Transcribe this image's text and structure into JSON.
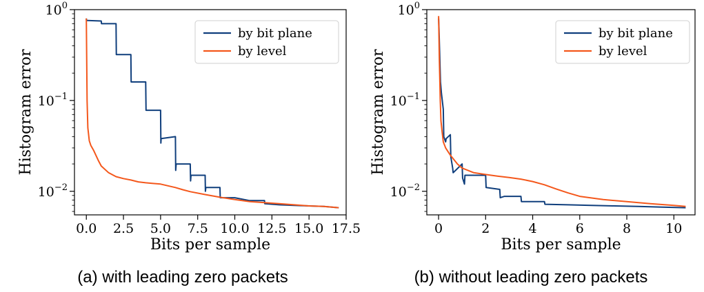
{
  "chart_data": [
    {
      "type": "line",
      "xlabel": "Bits per sample",
      "ylabel": "Histogram error",
      "yscale": "log",
      "xlim": [
        -0.8,
        17.5
      ],
      "ylim": [
        0.0055,
        1.0
      ],
      "xticks": [
        0,
        2.5,
        5,
        7.5,
        10,
        12.5,
        15,
        17.5
      ],
      "xtick_labels": [
        "0.0",
        "2.5",
        "5.0",
        "7.5",
        "10.0",
        "12.5",
        "15.0",
        "17.5"
      ],
      "yticks": [
        {
          "value": 1,
          "base": "10",
          "exp": "0"
        },
        {
          "value": 0.1,
          "base": "10",
          "exp": "−1"
        },
        {
          "value": 0.01,
          "base": "10",
          "exp": "−2"
        }
      ],
      "legend": "top-right",
      "caption": "(a) with leading zero packets",
      "series": [
        {
          "name": "by bit plane",
          "color": "#0f3e7c",
          "x": [
            0.0,
            0.01,
            1.0,
            1.02,
            2.0,
            2.02,
            3.0,
            3.02,
            4.0,
            4.02,
            5.0,
            5.02,
            5.04,
            6.0,
            6.02,
            6.05,
            7.0,
            7.02,
            7.05,
            8.0,
            8.02,
            8.05,
            9.0,
            9.02,
            10.0,
            11.0,
            12.0,
            12.02,
            13.0,
            14.0,
            15.0,
            16.0,
            17.0
          ],
          "y": [
            0.8,
            0.76,
            0.75,
            0.7,
            0.7,
            0.32,
            0.32,
            0.16,
            0.16,
            0.078,
            0.078,
            0.034,
            0.038,
            0.04,
            0.017,
            0.02,
            0.02,
            0.013,
            0.015,
            0.015,
            0.01,
            0.011,
            0.011,
            0.0085,
            0.0085,
            0.0079,
            0.0079,
            0.0073,
            0.0071,
            0.007,
            0.0069,
            0.0068,
            0.0066
          ]
        },
        {
          "name": "by level",
          "color": "#f4571b",
          "x": [
            0.0,
            0.05,
            0.1,
            0.2,
            0.3,
            0.5,
            0.8,
            1.0,
            1.5,
            2.0,
            2.5,
            3.0,
            3.5,
            4.0,
            4.5,
            5.0,
            5.5,
            6.0,
            6.5,
            7.0,
            8.0,
            9.0,
            10.0,
            11.0,
            12.0,
            13.0,
            14.0,
            15.0,
            16.0,
            17.0
          ],
          "y": [
            0.8,
            0.1,
            0.05,
            0.036,
            0.032,
            0.028,
            0.022,
            0.019,
            0.016,
            0.0145,
            0.0138,
            0.0133,
            0.0127,
            0.0124,
            0.0122,
            0.012,
            0.0115,
            0.011,
            0.0104,
            0.0099,
            0.0092,
            0.0086,
            0.0081,
            0.0077,
            0.0075,
            0.0073,
            0.0071,
            0.0069,
            0.0068,
            0.0066
          ]
        }
      ]
    },
    {
      "type": "line",
      "xlabel": "Bits per sample",
      "ylabel": "Histogram error",
      "yscale": "log",
      "xlim": [
        -0.5,
        10.9
      ],
      "ylim": [
        0.0055,
        1.0
      ],
      "xticks": [
        0,
        2,
        4,
        6,
        8,
        10
      ],
      "xtick_labels": [
        "0",
        "2",
        "4",
        "6",
        "8",
        "10"
      ],
      "yticks": [
        {
          "value": 1,
          "base": "10",
          "exp": "0"
        },
        {
          "value": 0.1,
          "base": "10",
          "exp": "−1"
        },
        {
          "value": 0.01,
          "base": "10",
          "exp": "−2"
        }
      ],
      "legend": "top-right",
      "caption": "(b) without leading zero packets",
      "series": [
        {
          "name": "by bit plane",
          "color": "#0f3e7c",
          "x": [
            0.0,
            0.02,
            0.05,
            0.08,
            0.12,
            0.2,
            0.22,
            0.3,
            0.32,
            0.5,
            0.52,
            0.6,
            0.62,
            1.0,
            1.02,
            1.1,
            1.12,
            2.0,
            2.02,
            2.6,
            2.62,
            2.8,
            3.5,
            3.52,
            4.5,
            4.52,
            5.5,
            6.5,
            7.5,
            8.5,
            9.5,
            10.5
          ],
          "y": [
            0.8,
            0.6,
            0.3,
            0.16,
            0.12,
            0.08,
            0.04,
            0.035,
            0.038,
            0.042,
            0.024,
            0.018,
            0.016,
            0.02,
            0.014,
            0.012,
            0.015,
            0.015,
            0.011,
            0.0105,
            0.0085,
            0.0088,
            0.0088,
            0.0077,
            0.0077,
            0.0072,
            0.0071,
            0.007,
            0.0069,
            0.0068,
            0.0067,
            0.0066
          ]
        },
        {
          "name": "by level",
          "color": "#f4571b",
          "x": [
            0.0,
            0.03,
            0.07,
            0.1,
            0.15,
            0.2,
            0.3,
            0.5,
            0.8,
            1.0,
            1.5,
            2.0,
            2.5,
            3.0,
            3.5,
            4.0,
            4.5,
            5.0,
            5.5,
            6.0,
            7.0,
            8.0,
            9.0,
            10.0,
            10.5
          ],
          "y": [
            0.85,
            0.3,
            0.1,
            0.06,
            0.045,
            0.035,
            0.03,
            0.025,
            0.02,
            0.018,
            0.016,
            0.0153,
            0.0147,
            0.0142,
            0.0136,
            0.0128,
            0.0118,
            0.0106,
            0.0096,
            0.0088,
            0.0081,
            0.0077,
            0.0073,
            0.007,
            0.0068
          ]
        }
      ]
    }
  ]
}
